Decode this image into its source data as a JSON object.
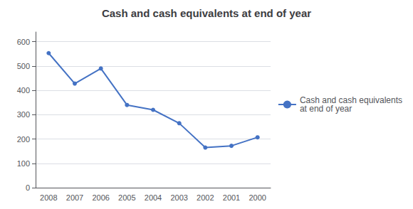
{
  "chart_data": {
    "type": "line",
    "title": "Cash and cash equivalents at end of year",
    "categories": [
      "2008",
      "2007",
      "2006",
      "2005",
      "2004",
      "2003",
      "2002",
      "2001",
      "2000"
    ],
    "series": [
      {
        "name": "Cash and cash equivalents\nat end of year",
        "color": "#4472C4",
        "values": [
          553,
          428,
          490,
          340,
          320,
          265,
          165,
          172,
          207
        ]
      }
    ],
    "ylim": [
      0,
      640
    ],
    "yticks": [
      0,
      100,
      200,
      300,
      400,
      500,
      600
    ],
    "grid": true,
    "legend": "right",
    "marker": "circle"
  }
}
